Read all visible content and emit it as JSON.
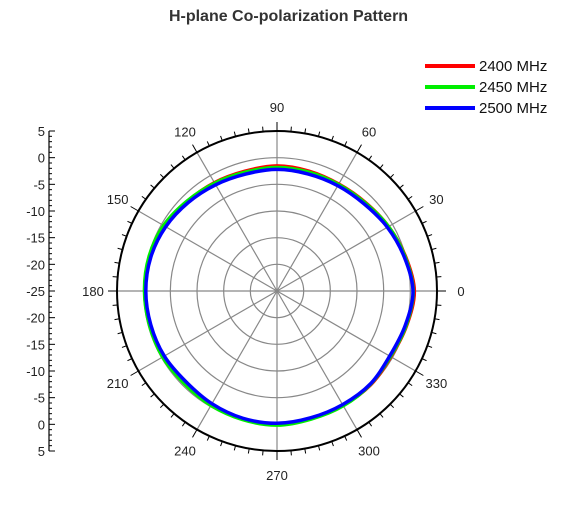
{
  "chart_data": {
    "type": "polar-line",
    "title": "H-plane Co-polarization Pattern",
    "angular_ticks": [
      0,
      30,
      60,
      90,
      120,
      150,
      180,
      210,
      240,
      270,
      300,
      330
    ],
    "angular_tick_labels": [
      "0",
      "30",
      "60",
      "90",
      "120",
      "150",
      "180",
      "210",
      "240",
      "270",
      "300",
      "330"
    ],
    "radial_range": [
      -25,
      5
    ],
    "radial_ticks": [
      5,
      0,
      -5,
      -10,
      -15,
      -20,
      -25,
      -20,
      -15,
      -10,
      -5,
      0,
      5
    ],
    "radial_tick_labels": [
      "5",
      "0",
      "-5",
      "-10",
      "-15",
      "-20",
      "-25",
      "-20",
      "-15",
      "-10",
      "-5",
      "0",
      "5"
    ],
    "radial_grid_count": 6,
    "grid": true,
    "legend_position": "top-right",
    "theta": [
      0,
      15,
      30,
      45,
      60,
      75,
      90,
      105,
      120,
      135,
      150,
      165,
      180,
      195,
      210,
      225,
      240,
      255,
      270,
      285,
      300,
      315,
      330,
      345
    ],
    "series": [
      {
        "name": "2400 MHz",
        "color": "#ff0000",
        "values": [
          0.8,
          0.0,
          -0.8,
          -1.5,
          -1.8,
          -1.7,
          -1.5,
          -1.7,
          -1.5,
          -1.2,
          -0.7,
          -0.4,
          -0.3,
          -0.4,
          -0.5,
          -0.7,
          -0.4,
          -0.2,
          -0.1,
          -0.3,
          -0.2,
          -0.1,
          -0.3,
          0.2
        ]
      },
      {
        "name": "2450 MHz",
        "color": "#00ee00",
        "values": [
          0.6,
          -0.1,
          -0.8,
          -1.6,
          -1.9,
          -1.9,
          -1.8,
          -1.9,
          -1.6,
          -1.1,
          -0.4,
          -0.1,
          -0.1,
          -0.2,
          -0.2,
          -0.4,
          -0.2,
          0.0,
          0.2,
          -0.1,
          -0.1,
          -0.2,
          -0.4,
          0.1
        ]
      },
      {
        "name": "2500 MHz",
        "color": "#0000ff",
        "values": [
          0.5,
          -0.3,
          -1.1,
          -1.9,
          -2.2,
          -2.3,
          -2.2,
          -2.3,
          -2.0,
          -1.5,
          -0.9,
          -0.5,
          -0.4,
          -0.5,
          -0.6,
          -0.9,
          -0.6,
          -0.3,
          -0.2,
          -0.4,
          -0.4,
          -0.3,
          -0.6,
          -0.1
        ]
      }
    ]
  }
}
